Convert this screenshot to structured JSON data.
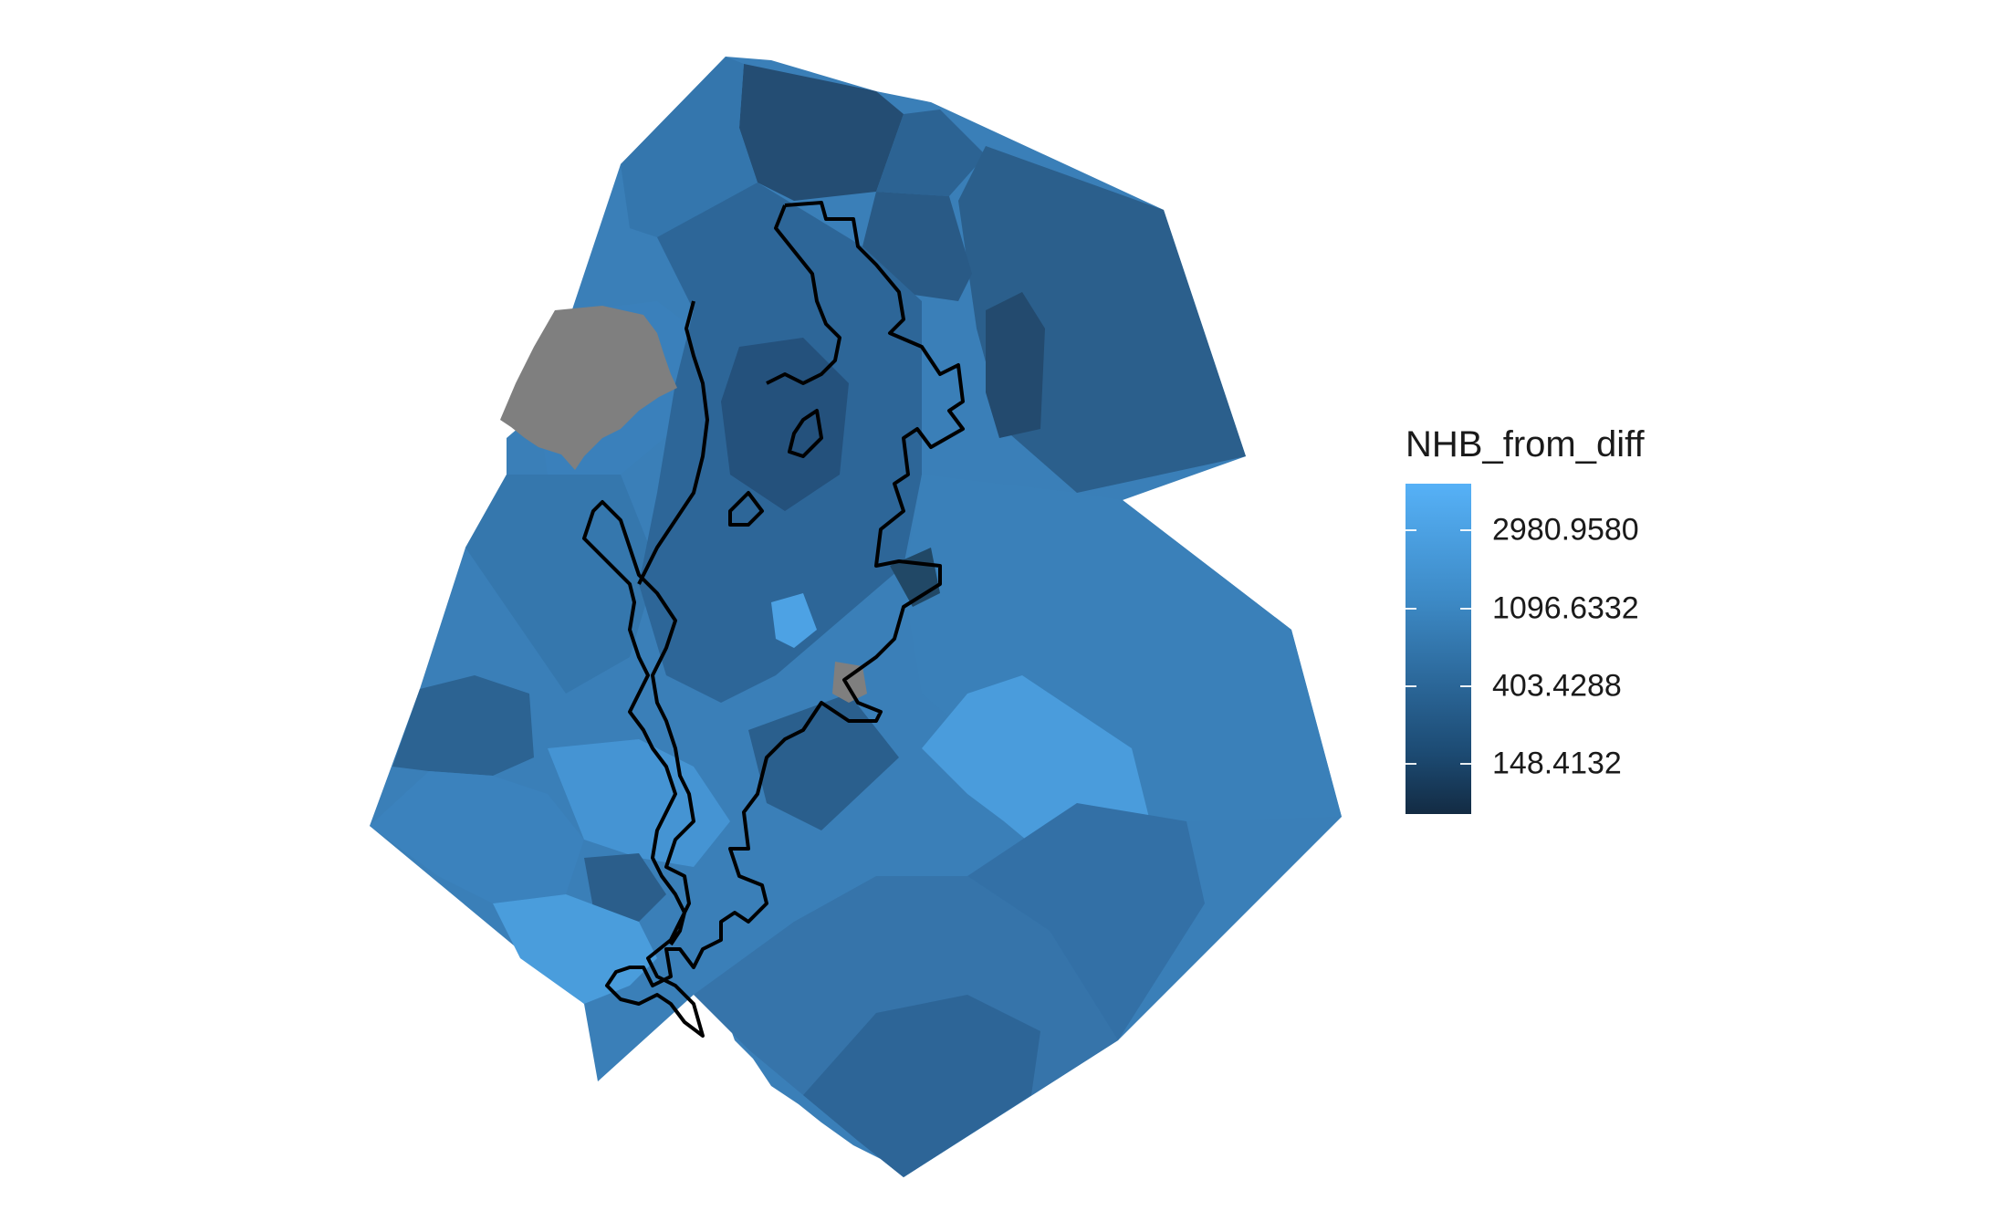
{
  "legend": {
    "title": "NHB_from_diff",
    "breaks": [
      {
        "label": "2980.9580",
        "value": 2980.958
      },
      {
        "label": "1096.6332",
        "value": 1096.6332
      },
      {
        "label": "403.4288",
        "value": 403.4288
      },
      {
        "label": "148.4132",
        "value": 148.4132
      }
    ],
    "gradient": [
      "#132b43",
      "#56b1f7"
    ],
    "scale": "log"
  },
  "colors": {
    "na_fill": "#7f7f7f",
    "boundary_stroke": "#000000",
    "background": "#ffffff"
  }
}
